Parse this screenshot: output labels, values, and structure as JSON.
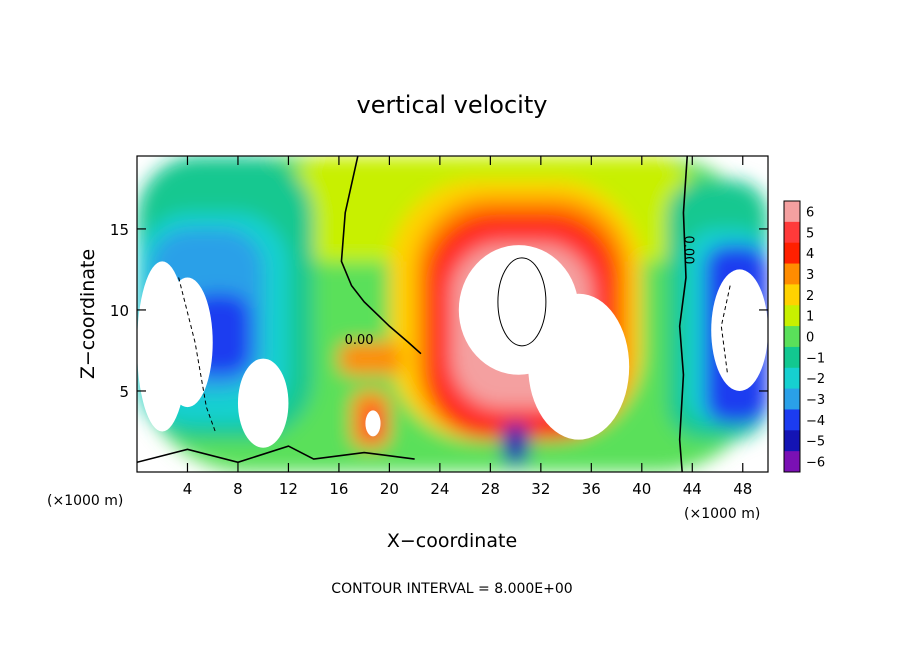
{
  "chart_data": {
    "type": "heatmap",
    "title": "vertical velocity",
    "xlabel": "X−coordinate",
    "ylabel": "Z−coordinate",
    "x_unit": "(×1000 m)",
    "x_ticks": [
      4,
      8,
      12,
      16,
      20,
      24,
      28,
      32,
      36,
      40,
      44,
      48
    ],
    "y_ticks": [
      5,
      10,
      15
    ],
    "xlim": [
      0,
      50
    ],
    "ylim": [
      0,
      19.5
    ],
    "colorbar": {
      "levels": [
        6,
        5,
        4,
        3,
        2,
        1,
        0,
        -1,
        -2,
        -3,
        -4,
        -5,
        -6
      ],
      "colors": [
        "#f4a0a0",
        "#ff3a3a",
        "#ff2000",
        "#ff8c00",
        "#ffd200",
        "#c8f000",
        "#5ae05a",
        "#12c890",
        "#16d0d0",
        "#2aa0e8",
        "#1c3cf0",
        "#1414b4",
        "#7a10b4"
      ],
      "out_of_range_color": "#ffffff"
    },
    "contour_labels": [
      {
        "text": "0.00",
        "x": 17.6,
        "z": 7.9,
        "rotate": 0
      },
      {
        "text": "0.00",
        "x": 43.4,
        "z": 13.7,
        "rotate": 90
      }
    ],
    "contour_interval_text": "CONTOUR INTERVAL = 8.000E+00",
    "regions": [
      {
        "level": 0,
        "x0": 0,
        "x1": 50,
        "z0": 0,
        "z1": 19.5
      },
      {
        "level": 1,
        "x0": 12,
        "x1": 44,
        "z0": 13,
        "z1": 19.5
      },
      {
        "level": -1,
        "x0": 0,
        "x1": 14,
        "z0": 2,
        "z1": 19.5
      },
      {
        "level": -2,
        "x0": 0,
        "x1": 12,
        "z0": 3,
        "z1": 16
      },
      {
        "level": -3,
        "x0": 1,
        "x1": 10,
        "z0": 5,
        "z1": 15
      },
      {
        "level": -4,
        "x0": 4,
        "x1": 9,
        "z0": 6,
        "z1": 11
      },
      {
        "level": -1,
        "x0": 42,
        "x1": 50,
        "z0": 2,
        "z1": 18
      },
      {
        "level": -2,
        "x0": 43.5,
        "x1": 50,
        "z0": 3,
        "z1": 15
      },
      {
        "level": -4,
        "x0": 45,
        "x1": 50,
        "z0": 3,
        "z1": 14
      },
      {
        "level": 2,
        "x0": 20,
        "x1": 40,
        "z0": 2,
        "z1": 18
      },
      {
        "level": 3,
        "x0": 22,
        "x1": 39,
        "z0": 2,
        "z1": 17
      },
      {
        "level": 4,
        "x0": 23,
        "x1": 38,
        "z0": 2,
        "z1": 16
      },
      {
        "level": 5,
        "x0": 24,
        "x1": 37,
        "z0": 3,
        "z1": 15
      },
      {
        "level": 6,
        "x0": 25,
        "x1": 36,
        "z0": 4,
        "z1": 14
      },
      {
        "level": -5,
        "x0": 29,
        "x1": 31,
        "z0": 0.5,
        "z1": 3
      },
      {
        "level": 3,
        "x0": 17,
        "x1": 20,
        "z0": 1.5,
        "z1": 5
      },
      {
        "level": 5,
        "x0": 18,
        "x1": 19.5,
        "z0": 2,
        "z1": 4
      },
      {
        "level": 3,
        "x0": 16,
        "x1": 21,
        "z0": 6,
        "z1": 8
      }
    ],
    "white_regions": [
      {
        "x0": 25.5,
        "x1": 35,
        "z0": 6,
        "z1": 14
      },
      {
        "x0": 31,
        "x1": 39,
        "z0": 2,
        "z1": 11
      },
      {
        "x0": 0,
        "x1": 4,
        "z0": 2.5,
        "z1": 13
      },
      {
        "x0": 2,
        "x1": 6,
        "z0": 4,
        "z1": 12
      },
      {
        "x0": 8,
        "x1": 12,
        "z0": 1.5,
        "z1": 7
      },
      {
        "x0": 45.5,
        "x1": 50,
        "z0": 5,
        "z1": 12.5
      },
      {
        "x0": 18.1,
        "x1": 19.3,
        "z0": 2.2,
        "z1": 3.8
      }
    ]
  }
}
